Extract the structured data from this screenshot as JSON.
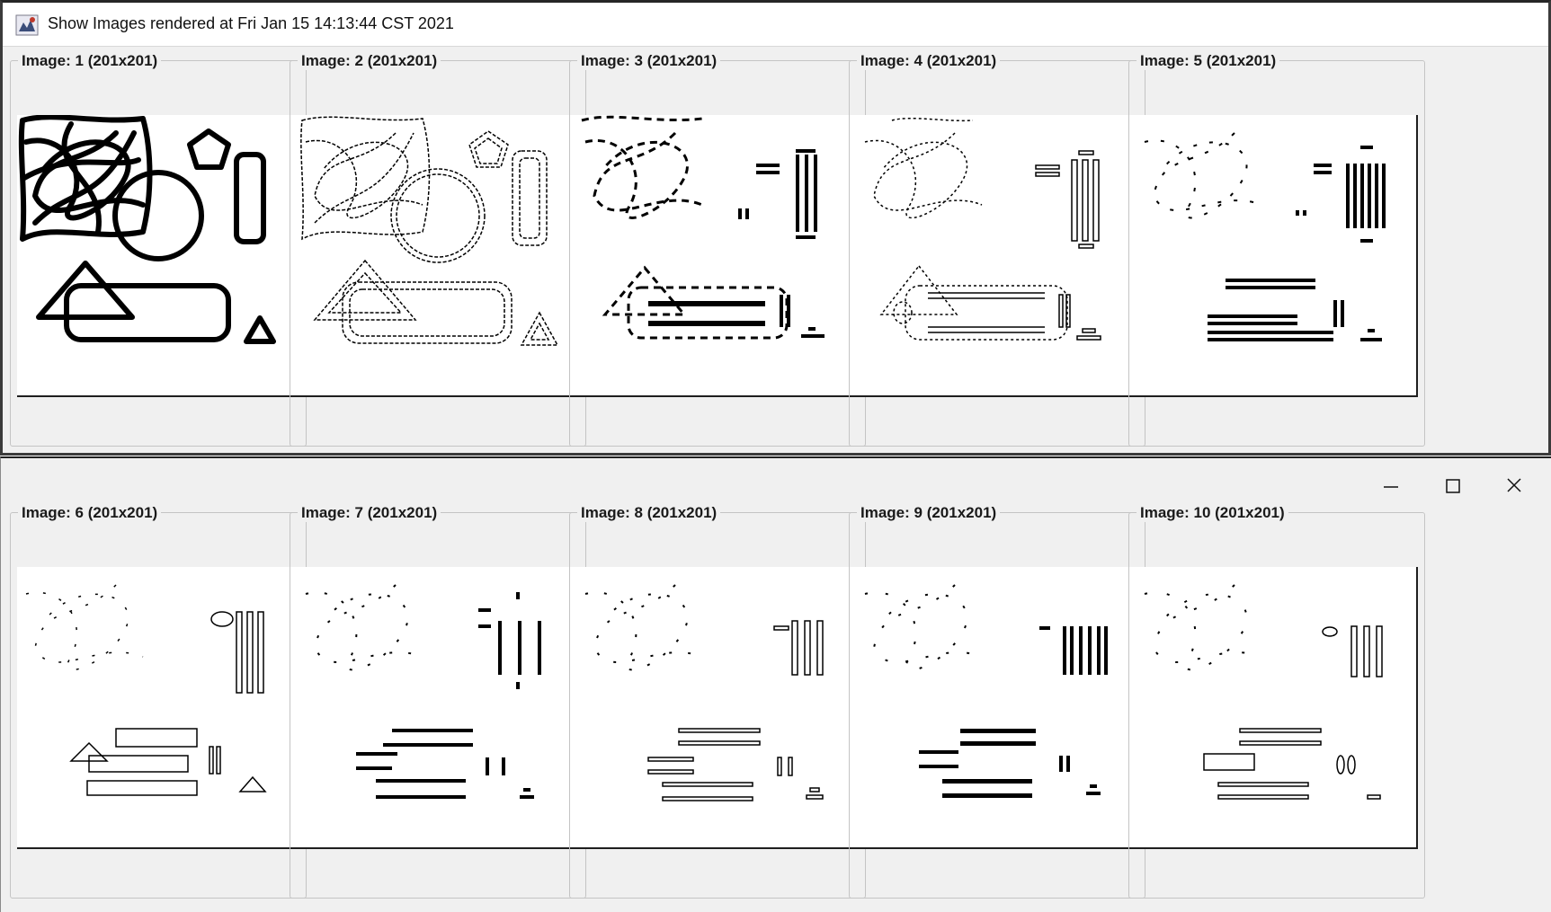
{
  "window": {
    "title": "Show Images rendered at Fri Jan 15 14:13:44 CST 2021",
    "controls": {
      "minimize": "minimize-icon",
      "maximize": "maximize-icon",
      "close": "close-icon"
    }
  },
  "images": [
    {
      "label": "Image: 1 (201x201)"
    },
    {
      "label": "Image: 2 (201x201)"
    },
    {
      "label": "Image: 3 (201x201)"
    },
    {
      "label": "Image: 4 (201x201)"
    },
    {
      "label": "Image: 5 (201x201)"
    },
    {
      "label": "Image: 6 (201x201)"
    },
    {
      "label": "Image: 7 (201x201)"
    },
    {
      "label": "Image: 8 (201x201)"
    },
    {
      "label": "Image: 9 (201x201)"
    },
    {
      "label": "Image: 10 (201x201)"
    }
  ]
}
